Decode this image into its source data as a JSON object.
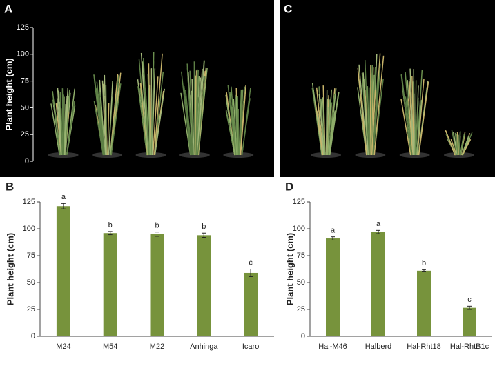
{
  "chart_data": [
    {
      "type": "photo",
      "panel": "A",
      "ylabel": "Plant height (cm)",
      "ylim": [
        0,
        125
      ],
      "yticks": [
        0,
        25,
        50,
        75,
        100,
        125
      ],
      "plants": 5
    },
    {
      "type": "photo",
      "panel": "C",
      "plants": 4
    },
    {
      "type": "bar",
      "panel": "B",
      "ylabel": "Plant height (cm)",
      "categories": [
        "M24",
        "M54",
        "M22",
        "Anhinga",
        "Icaro"
      ],
      "values": [
        121,
        96,
        95,
        94,
        59
      ],
      "errors": [
        2.5,
        1.5,
        2,
        2,
        3.5
      ],
      "annotations": [
        "a",
        "b",
        "b",
        "b",
        "c"
      ],
      "color": "#77933c",
      "ylim": [
        0,
        125
      ],
      "yticks": [
        0,
        25,
        50,
        75,
        100,
        125
      ]
    },
    {
      "type": "bar",
      "panel": "D",
      "ylabel": "Plant height (cm)",
      "categories": [
        "Hal-M46",
        "Halberd",
        "Hal-Rht18",
        "Hal-RhtB1c"
      ],
      "values": [
        91,
        97,
        61,
        26.5
      ],
      "errors": [
        1.5,
        1.5,
        1,
        1.5
      ],
      "annotations": [
        "a",
        "a",
        "b",
        "c"
      ],
      "color": "#77933c",
      "ylim": [
        0,
        125
      ],
      "yticks": [
        0,
        25,
        50,
        75,
        100,
        125
      ]
    }
  ]
}
